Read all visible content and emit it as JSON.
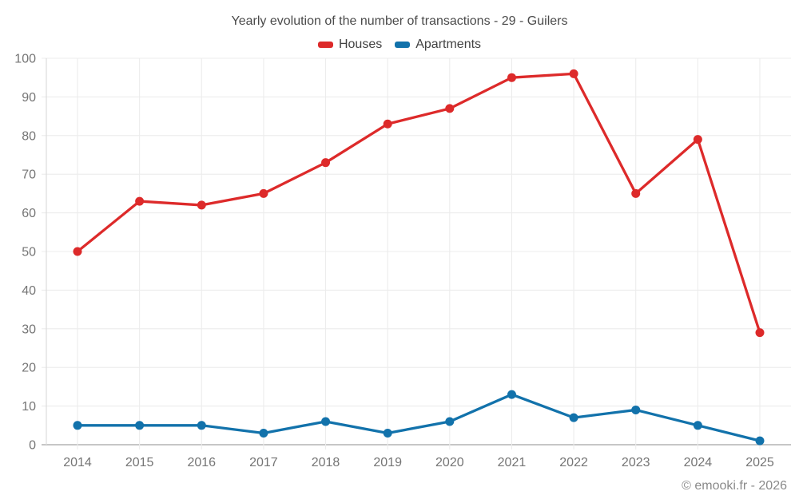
{
  "chart_data": {
    "type": "line",
    "title": "Yearly evolution of the number of transactions - 29 - Guilers",
    "categories": [
      "2014",
      "2015",
      "2016",
      "2017",
      "2018",
      "2019",
      "2020",
      "2021",
      "2022",
      "2023",
      "2024",
      "2025"
    ],
    "series": [
      {
        "name": "Houses",
        "color": "#dd2a2a",
        "values": [
          50,
          63,
          62,
          65,
          73,
          83,
          87,
          95,
          96,
          65,
          79,
          29
        ]
      },
      {
        "name": "Apartments",
        "color": "#1272ab",
        "values": [
          5,
          5,
          5,
          3,
          6,
          3,
          6,
          13,
          7,
          9,
          5,
          1
        ]
      }
    ],
    "y_axis": {
      "min": 0,
      "max": 100,
      "step": 10
    },
    "xlabel": "",
    "ylabel": "",
    "legend_position": "top",
    "grid": true,
    "colors": {
      "grid_line": "#ececec",
      "zero_axis_line": "#b3b3b3",
      "left_axis_line": "#dcdcdc",
      "tick_text": "#757575",
      "title_text": "#4a4a4a",
      "legend_text": "#424242",
      "footer_text": "#8a8a8a"
    }
  },
  "footer": {
    "text": "© emooki.fr - 2026"
  }
}
